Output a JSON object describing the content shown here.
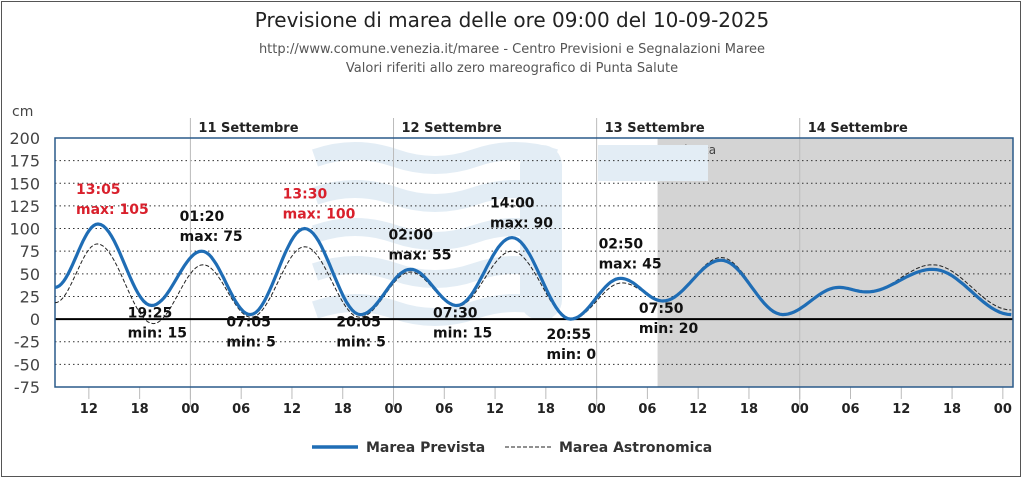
{
  "title": "Previsione di marea delle ore 09:00 del 10-09-2025",
  "subtitle1": "http://www.comune.venezia.it/maree - Centro Previsioni e Segnalazioni Maree",
  "subtitle2": "Valori riferiti allo zero mareografico di Punta Salute",
  "chart_data": {
    "type": "line",
    "ylabel": "cm",
    "ylim": [
      -75,
      200
    ],
    "yticks": [
      200,
      175,
      150,
      125,
      100,
      75,
      50,
      25,
      0,
      -25,
      -50,
      -75
    ],
    "xlim_hours": [
      8,
      121.2
    ],
    "xticks": [
      {
        "h": 12,
        "l": "12"
      },
      {
        "h": 18,
        "l": "18"
      },
      {
        "h": 24,
        "l": "00"
      },
      {
        "h": 30,
        "l": "06"
      },
      {
        "h": 36,
        "l": "12"
      },
      {
        "h": 42,
        "l": "18"
      },
      {
        "h": 48,
        "l": "00"
      },
      {
        "h": 54,
        "l": "06"
      },
      {
        "h": 60,
        "l": "12"
      },
      {
        "h": 66,
        "l": "18"
      },
      {
        "h": 72,
        "l": "00"
      },
      {
        "h": 78,
        "l": "06"
      },
      {
        "h": 84,
        "l": "12"
      },
      {
        "h": 90,
        "l": "18"
      },
      {
        "h": 96,
        "l": "00"
      },
      {
        "h": 102,
        "l": "06"
      },
      {
        "h": 108,
        "l": "12"
      },
      {
        "h": 114,
        "l": "18"
      },
      {
        "h": 120,
        "l": "00"
      }
    ],
    "days": [
      {
        "h": 24,
        "l": "11 Settembre"
      },
      {
        "h": 48,
        "l": "12 Settembre"
      },
      {
        "h": 72,
        "l": "13 Settembre"
      },
      {
        "h": 96,
        "l": "14 Settembre"
      }
    ],
    "tendenza": {
      "from_hour": 79.2,
      "label": "Tendenza"
    },
    "series": [
      {
        "name": "Marea Prevista",
        "color": "#1f6db5",
        "points": [
          [
            8,
            35
          ],
          [
            13.08,
            105
          ],
          [
            19.42,
            15
          ],
          [
            25.33,
            75
          ],
          [
            31.08,
            5
          ],
          [
            37.5,
            100
          ],
          [
            44.08,
            5
          ],
          [
            50,
            55
          ],
          [
            55.5,
            15
          ],
          [
            62,
            90
          ],
          [
            68.92,
            0
          ],
          [
            74.83,
            45
          ],
          [
            79.83,
            20
          ],
          [
            86.7,
            65
          ],
          [
            94,
            5
          ],
          [
            100.6,
            35
          ],
          [
            103.9,
            30
          ],
          [
            111.7,
            55
          ],
          [
            121,
            5
          ]
        ]
      },
      {
        "name": "Marea Astronomica",
        "color": "#222",
        "dashed": true,
        "points": [
          [
            8,
            18
          ],
          [
            13,
            83
          ],
          [
            19.6,
            -5
          ],
          [
            25.5,
            60
          ],
          [
            31.2,
            2
          ],
          [
            37.5,
            80
          ],
          [
            44,
            2
          ],
          [
            50,
            52
          ],
          [
            55.5,
            14
          ],
          [
            62,
            75
          ],
          [
            69,
            0
          ],
          [
            75,
            40
          ],
          [
            80,
            20
          ],
          [
            86.7,
            68
          ],
          [
            94,
            5
          ],
          [
            100.6,
            35
          ],
          [
            104,
            30
          ],
          [
            111.7,
            60
          ],
          [
            121,
            10
          ]
        ]
      }
    ],
    "annotations": [
      {
        "h": 13.08,
        "v": 105,
        "time": "13:05",
        "text": "max: 105",
        "red": true,
        "pos": "above"
      },
      {
        "h": 19.42,
        "v": 15,
        "time": "19:25",
        "text": "min: 15",
        "pos": "below"
      },
      {
        "h": 25.33,
        "v": 75,
        "time": "01:20",
        "text": "max: 75",
        "pos": "above"
      },
      {
        "h": 31.08,
        "v": 5,
        "time": "07:05",
        "text": "min: 5",
        "pos": "below"
      },
      {
        "h": 37.5,
        "v": 100,
        "time": "13:30",
        "text": "max: 100",
        "red": true,
        "pos": "above"
      },
      {
        "h": 44.08,
        "v": 5,
        "time": "20:05",
        "text": "min: 5",
        "pos": "below"
      },
      {
        "h": 50,
        "v": 55,
        "time": "02:00",
        "text": "max: 55",
        "pos": "above"
      },
      {
        "h": 55.5,
        "v": 15,
        "time": "07:30",
        "text": "min: 15",
        "pos": "below"
      },
      {
        "h": 62,
        "v": 90,
        "time": "14:00",
        "text": "max: 90",
        "pos": "above"
      },
      {
        "h": 68.92,
        "v": 0,
        "time": "20:55",
        "text": "min: 0",
        "pos": "below"
      },
      {
        "h": 74.83,
        "v": 45,
        "time": "02:50",
        "text": "max: 45",
        "pos": "above"
      },
      {
        "h": 79.83,
        "v": 20,
        "time": "07:50",
        "text": "min: 20",
        "pos": "below"
      }
    ]
  }
}
